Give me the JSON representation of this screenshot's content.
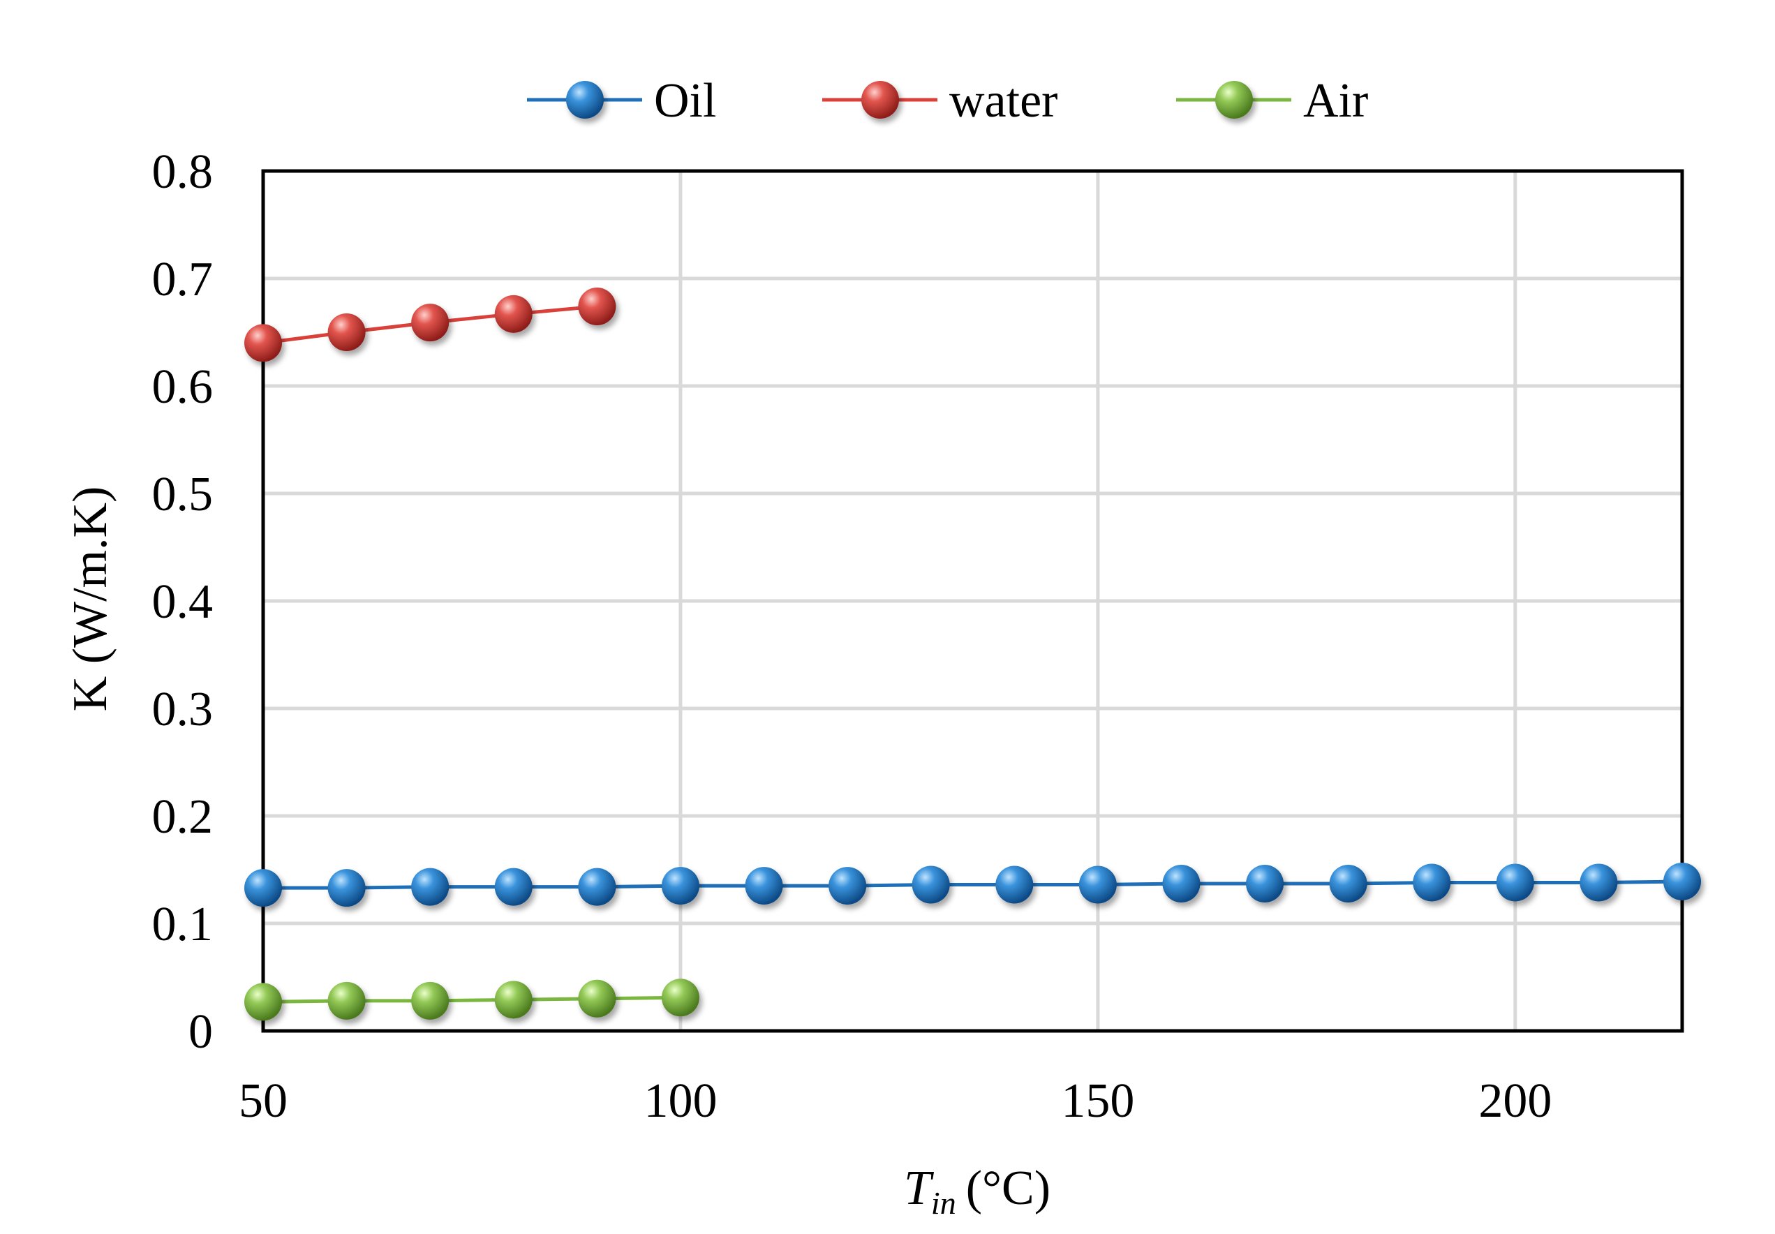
{
  "chart_data": {
    "type": "line",
    "title": "",
    "xlabel": "T",
    "xlabel_subscript": "in",
    "xlabel_unit": "(°C)",
    "ylabel": "K (W/m.K)",
    "xlim": [
      50,
      220
    ],
    "ylim": [
      0,
      0.8
    ],
    "grid": true,
    "legend_position": "top",
    "x_ticks": [
      "50",
      "100",
      "150",
      "200"
    ],
    "y_ticks": [
      "0",
      "0.1",
      "0.2",
      "0.3",
      "0.4",
      "0.5",
      "0.6",
      "0.7",
      "0.8"
    ],
    "series": [
      {
        "name": "Oil",
        "color": "#1f6fb8",
        "x": [
          50,
          60,
          70,
          80,
          90,
          100,
          110,
          120,
          130,
          140,
          150,
          160,
          170,
          180,
          190,
          200,
          210,
          220
        ],
        "values": [
          0.133,
          0.133,
          0.134,
          0.134,
          0.134,
          0.135,
          0.135,
          0.135,
          0.136,
          0.136,
          0.136,
          0.137,
          0.137,
          0.137,
          0.138,
          0.138,
          0.138,
          0.139
        ]
      },
      {
        "name": "water",
        "color": "#d9403a",
        "x": [
          50,
          60,
          70,
          80,
          90
        ],
        "values": [
          0.64,
          0.65,
          0.659,
          0.667,
          0.674
        ]
      },
      {
        "name": "Air",
        "color": "#7ab640",
        "x": [
          50,
          60,
          70,
          80,
          90,
          100
        ],
        "values": [
          0.027,
          0.028,
          0.028,
          0.029,
          0.03,
          0.031
        ]
      }
    ]
  }
}
